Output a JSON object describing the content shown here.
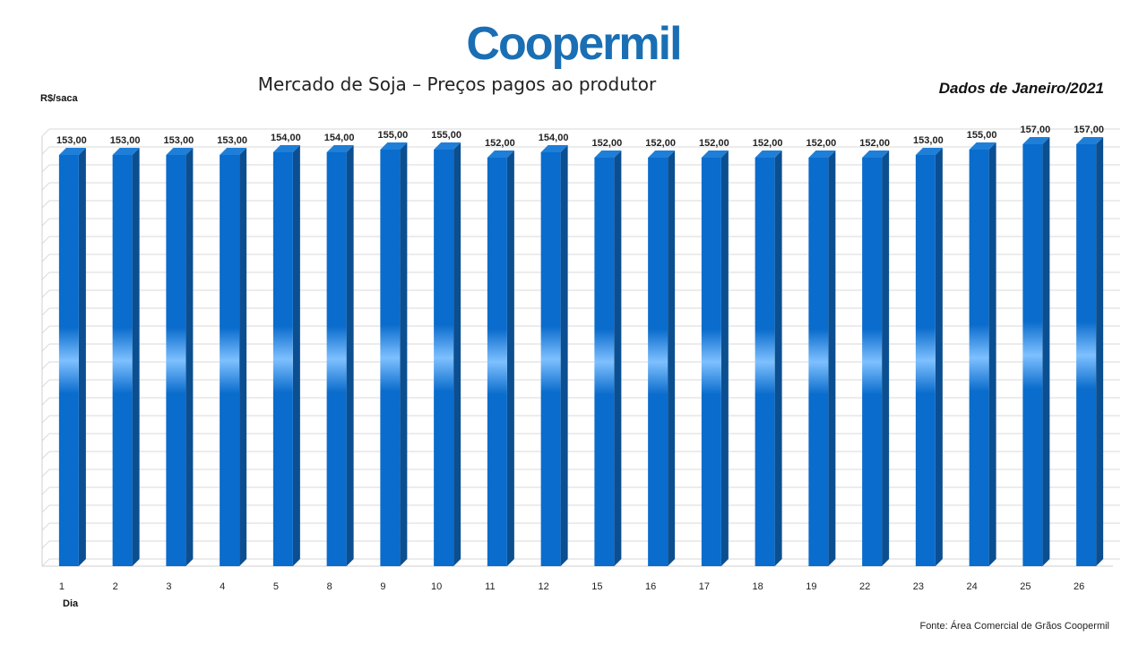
{
  "logo_text": "Coopermil",
  "title": "Mercado de Soja – Preços pagos ao produtor",
  "period_label": "Dados de Janeiro/2021",
  "ylabel": "R$/saca",
  "xlabel": "Dia",
  "source": "Fonte:  Área Comercial de Grãos Coopermil",
  "colors": {
    "bar": "#0a6ccc",
    "bar_dark": "#0b4f91",
    "bar_highlight": "#7ec0ff",
    "logo": "#1a6fb4"
  },
  "chart_data": {
    "type": "bar",
    "title": "Mercado de Soja – Preços pagos ao produtor",
    "xlabel": "Dia",
    "ylabel": "R$/saca",
    "categories": [
      "1",
      "2",
      "3",
      "4",
      "5",
      "8",
      "9",
      "10",
      "11",
      "12",
      "15",
      "16",
      "17",
      "18",
      "19",
      "22",
      "23",
      "24",
      "25",
      "26"
    ],
    "values": [
      153,
      153,
      153,
      153,
      154,
      154,
      155,
      155,
      152,
      154,
      152,
      152,
      152,
      152,
      152,
      152,
      153,
      155,
      157,
      157
    ],
    "value_labels": [
      "153,00",
      "153,00",
      "153,00",
      "153,00",
      "154,00",
      "154,00",
      "155,00",
      "155,00",
      "152,00",
      "154,00",
      "152,00",
      "152,00",
      "152,00",
      "152,00",
      "152,00",
      "152,00",
      "153,00",
      "155,00",
      "157,00",
      "157,00"
    ],
    "ylim": [
      0,
      160
    ],
    "grid": true,
    "legend": "none"
  }
}
